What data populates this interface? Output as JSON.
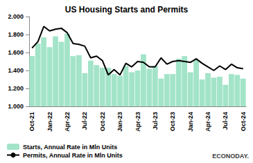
{
  "chart_data": {
    "type": "bar",
    "title": "US Housing Starts and Permits",
    "annotation": "ECONODAY.",
    "categories": [
      "Oct-21",
      null,
      null,
      "Jan-22",
      null,
      null,
      "Apr-22",
      null,
      null,
      "Jul-22",
      null,
      null,
      "Oct-22",
      null,
      null,
      "Jan-23",
      null,
      null,
      "Apr-23",
      null,
      null,
      "Jul-23",
      null,
      null,
      "Oct-23",
      null,
      null,
      "Jan-24",
      null,
      null,
      "Apr-24",
      null,
      null,
      "Jul-24",
      null,
      null,
      "Oct-24"
    ],
    "series": [
      {
        "name": "Starts, Annual Rate in Mln Units",
        "type": "bar",
        "color": "#a3e4c9",
        "values": [
          1.56,
          1.7,
          1.77,
          1.66,
          1.78,
          1.72,
          1.81,
          1.56,
          1.57,
          1.37,
          1.51,
          1.46,
          1.43,
          1.43,
          1.36,
          1.34,
          1.45,
          1.38,
          1.4,
          1.58,
          1.42,
          1.45,
          1.31,
          1.36,
          1.36,
          1.53,
          1.56,
          1.38,
          1.52,
          1.3,
          1.37,
          1.32,
          1.33,
          1.24,
          1.36,
          1.35,
          1.31
        ]
      },
      {
        "name": "Permits, Annual Rate in Mln Units",
        "type": "line",
        "color": "#000000",
        "values": [
          1.65,
          1.72,
          1.89,
          1.84,
          1.86,
          1.87,
          1.82,
          1.7,
          1.69,
          1.67,
          1.54,
          1.56,
          1.51,
          1.35,
          1.41,
          1.35,
          1.48,
          1.44,
          1.5,
          1.49,
          1.44,
          1.44,
          1.54,
          1.47,
          1.5,
          1.51,
          1.5,
          1.49,
          1.53,
          1.48,
          1.44,
          1.4,
          1.45,
          1.41,
          1.47,
          1.43,
          1.42
        ]
      }
    ],
    "ylim": [
      1,
      2
    ],
    "yticks": [
      {
        "value": 1,
        "label": "1.000"
      },
      {
        "value": 1.2,
        "label": "1.200"
      },
      {
        "value": 1.4,
        "label": "1.400"
      },
      {
        "value": 1.6,
        "label": "1.600"
      },
      {
        "value": 1.8,
        "label": "1.800"
      },
      {
        "value": 2,
        "label": "2.000"
      }
    ],
    "grid": false,
    "legend": "bottom-left"
  }
}
